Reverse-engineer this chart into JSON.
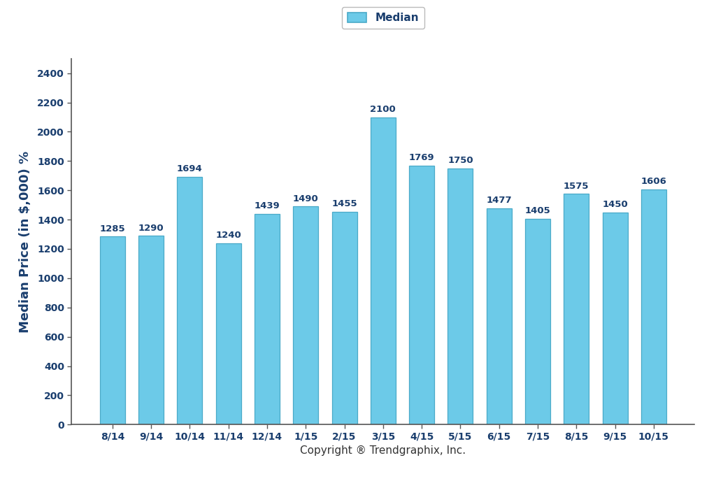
{
  "categories": [
    "8/14",
    "9/14",
    "10/14",
    "11/14",
    "12/14",
    "1/15",
    "2/15",
    "3/15",
    "4/15",
    "5/15",
    "6/15",
    "7/15",
    "8/15",
    "9/15",
    "10/15"
  ],
  "values": [
    1285,
    1290,
    1694,
    1240,
    1439,
    1490,
    1455,
    2100,
    1769,
    1750,
    1477,
    1405,
    1575,
    1450,
    1606
  ],
  "bar_color": "#6CCAE8",
  "bar_edge_color": "#4AAAC8",
  "ylabel": "Median Price (in $,000) %",
  "xlabel": "Copyright ® Trendgraphix, Inc.",
  "ylim": [
    0,
    2500
  ],
  "yticks": [
    0,
    200,
    400,
    600,
    800,
    1000,
    1200,
    1400,
    1600,
    1800,
    2000,
    2200,
    2400
  ],
  "legend_label": "Median",
  "legend_facecolor": "#6CCAE8",
  "legend_edgecolor": "#4AAAC8",
  "bar_label_fontsize": 9.5,
  "bar_label_color": "#1A3E6E",
  "ylabel_fontsize": 13,
  "xlabel_fontsize": 11,
  "tick_fontsize": 10,
  "ytick_color": "#1A3E6E",
  "xtick_color": "#1A3E6E",
  "background_color": "#ffffff",
  "spine_color": "#555555"
}
